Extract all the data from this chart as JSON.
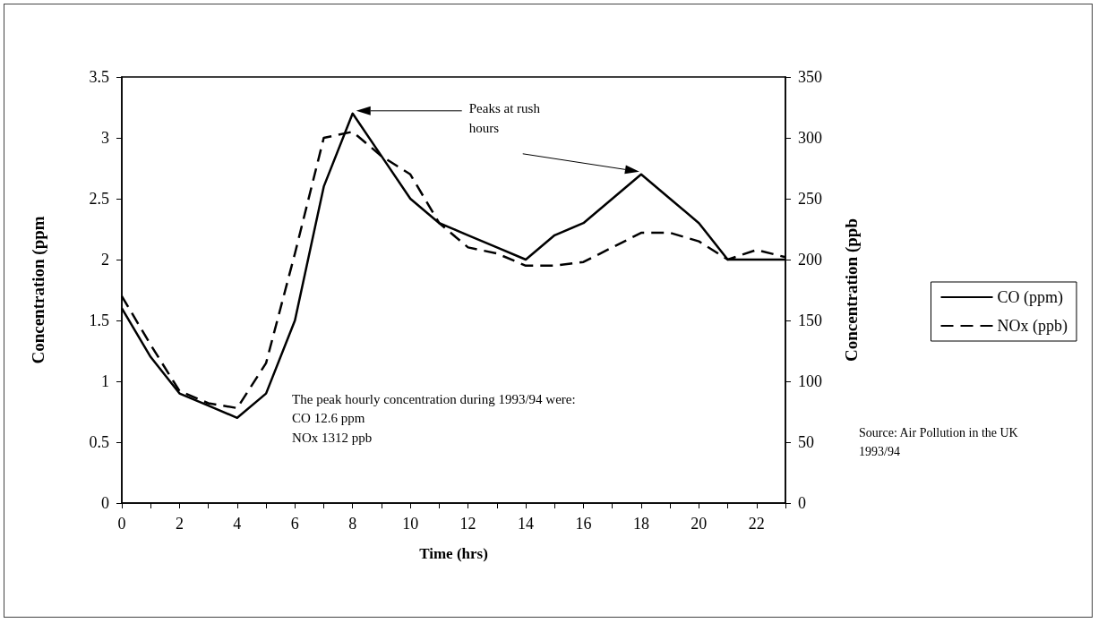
{
  "chart_data": {
    "type": "line",
    "xlabel": "Time (hrs)",
    "ylabel": "Concentration (ppm",
    "y2label": "Concentration (ppb",
    "x": [
      0,
      1,
      2,
      3,
      4,
      5,
      6,
      7,
      8,
      9,
      10,
      11,
      12,
      13,
      14,
      15,
      16,
      17,
      18,
      19,
      20,
      21,
      22,
      23
    ],
    "series": [
      {
        "name": "CO (ppm)",
        "color": "#000000",
        "line_style": "solid",
        "values": [
          1.6,
          1.2,
          0.9,
          0.8,
          0.7,
          0.9,
          1.5,
          2.6,
          3.2,
          2.85,
          2.5,
          2.3,
          2.2,
          2.1,
          2.0,
          2.2,
          2.3,
          2.5,
          2.7,
          2.5,
          2.3,
          2.0,
          2.0,
          2.0
        ]
      },
      {
        "name": "NOx (ppb)",
        "color": "#000000",
        "line_style": "dashed",
        "axis": "y2",
        "values": [
          170,
          130,
          92,
          82,
          78,
          115,
          205,
          300,
          305,
          285,
          270,
          230,
          210,
          205,
          195,
          195,
          198,
          210,
          222,
          222,
          215,
          200,
          208,
          202
        ]
      }
    ],
    "xlim": [
      0,
      23
    ],
    "xticks": [
      0,
      {
        "value": 1,
        "label": null
      },
      2,
      {
        "value": 3,
        "label": null
      },
      4,
      {
        "value": 5,
        "label": null
      },
      6,
      {
        "value": 7,
        "label": null
      },
      8,
      {
        "value": 9,
        "label": null
      },
      10,
      {
        "value": 11,
        "label": null
      },
      12,
      {
        "value": 13,
        "label": null
      },
      14,
      {
        "value": 15,
        "label": null
      },
      16,
      {
        "value": 17,
        "label": null
      },
      18,
      {
        "value": 19,
        "label": null
      },
      20,
      {
        "value": 21,
        "label": null
      },
      22,
      {
        "value": 23,
        "label": null
      }
    ],
    "ylim": [
      0,
      3.5
    ],
    "yticks": [
      0,
      0.5,
      1,
      1.5,
      2,
      2.5,
      3,
      3.5
    ],
    "y2lim": [
      0,
      350
    ],
    "y2ticks": [
      0,
      50,
      100,
      150,
      200,
      250,
      300,
      350
    ],
    "grid": false,
    "legend": "right",
    "marker": "none",
    "annotations": [
      "Peaks at rush hours",
      "The peak hourly concentration during 1993/94 were:\nCO 12.6 ppm\nNOx 1312 ppb",
      "Source: Air Pollution in the UK\n1993/94"
    ]
  }
}
